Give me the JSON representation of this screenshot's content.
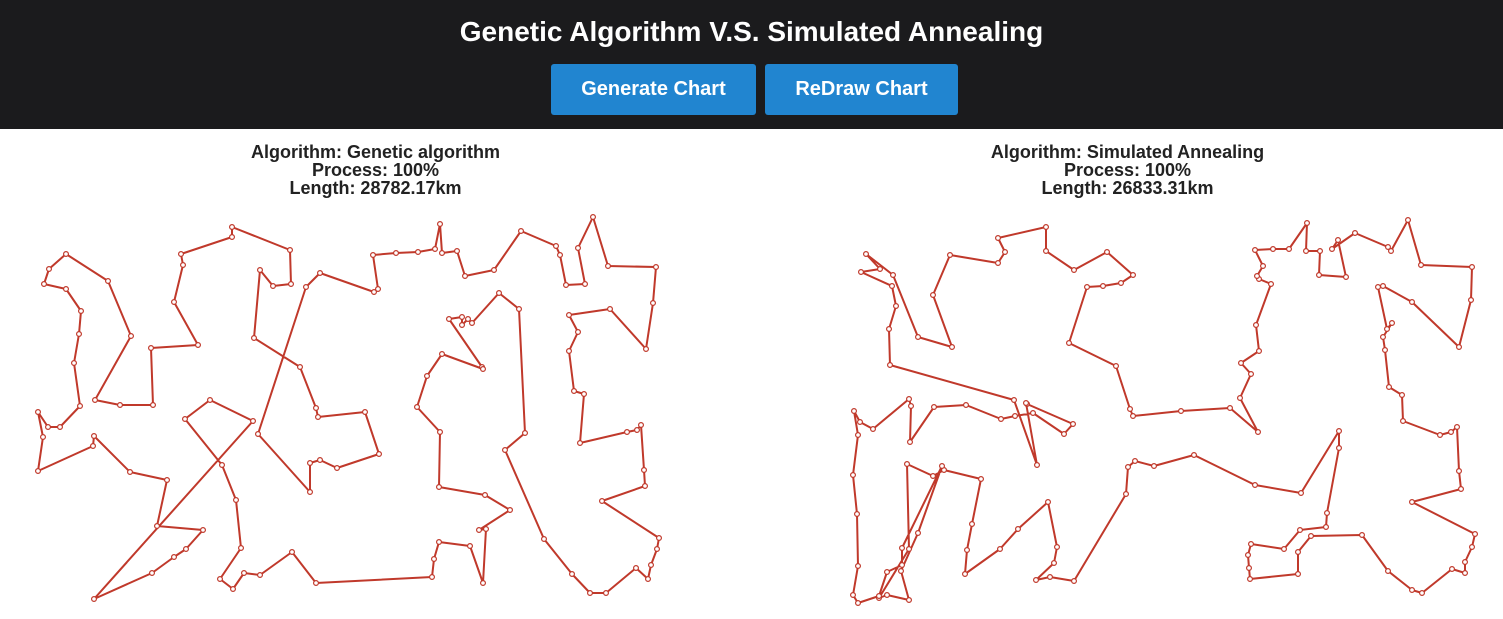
{
  "header": {
    "title": "Genetic Algorithm V.S. Simulated Annealing",
    "generate_label": "Generate Chart",
    "redraw_label": "ReDraw Chart"
  },
  "colors": {
    "header_bg": "#1b1b1d",
    "button": "#2185d0",
    "route": "#c0392b",
    "city_fill": "#ffffff"
  },
  "panels": [
    {
      "algorithm_line": "Algorithm: Genetic algorithm",
      "process_line": "Process: 100%",
      "length_line": "Length: 28782.17km"
    },
    {
      "algorithm_line": "Algorithm: Simulated Annealing",
      "process_line": "Process: 100%",
      "length_line": "Length: 26833.31km"
    }
  ]
}
